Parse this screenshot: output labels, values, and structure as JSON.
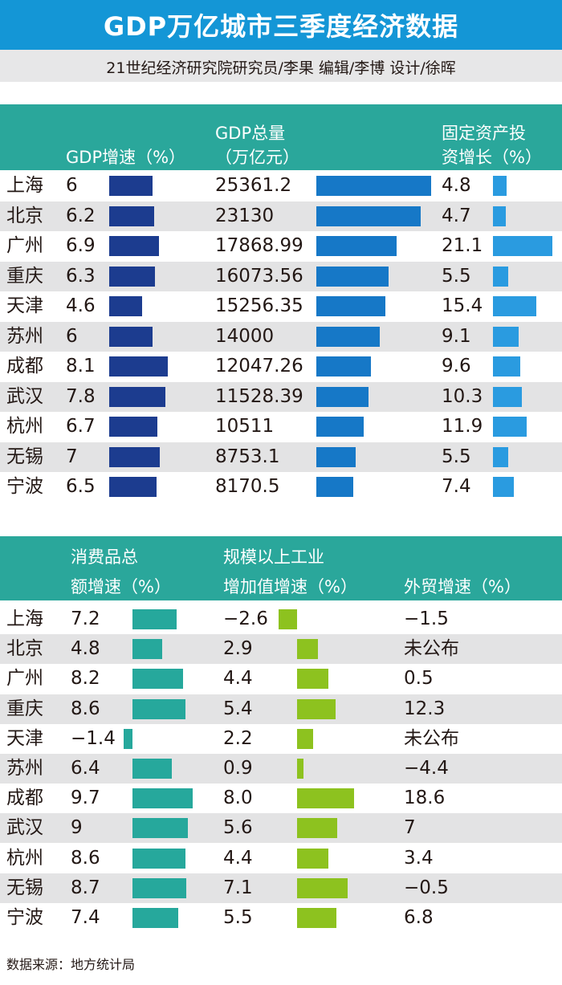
{
  "title": "GDP万亿城市三季度经济数据",
  "subtitle": "21世纪经济研究院研究员/李果 编辑/李博  设计/徐晖",
  "source": "数据来源：地方统计局",
  "colors": {
    "title_bg": "#1496d6",
    "header_bg": "#2aa79b",
    "gdp_growth_bar": "#1c3c8f",
    "gdp_total_bar": "#1678c7",
    "fixed_asset_bar": "#2a9be0",
    "consumer_bar": "#26a89c",
    "industrial_bar": "#8dc21f"
  },
  "chart_data": [
    {
      "type": "bar",
      "cities": [
        "上海",
        "北京",
        "广州",
        "重庆",
        "天津",
        "苏州",
        "成都",
        "武汉",
        "杭州",
        "无锡",
        "宁波"
      ],
      "series": [
        {
          "name": "GDP增速（%）",
          "header_lines": [
            "",
            "GDP增速（%）"
          ],
          "values": [
            6,
            6.2,
            6.9,
            6.3,
            4.6,
            6,
            8.1,
            7.8,
            6.7,
            7,
            6.5
          ],
          "labels": [
            "6",
            "6.2",
            "6.9",
            "6.3",
            "4.6",
            "6",
            "8.1",
            "7.8",
            "6.7",
            "7",
            "6.5"
          ]
        },
        {
          "name": "GDP总量（万亿元）",
          "header_lines": [
            "GDP总量",
            "（万亿元）"
          ],
          "values": [
            25361.2,
            23130,
            17868.99,
            16073.56,
            15256.35,
            14000,
            12047.26,
            11528.39,
            10511,
            8753.1,
            8170.5
          ],
          "labels": [
            "25361.2",
            "23130",
            "17868.99",
            "16073.56",
            "15256.35",
            "14000",
            "12047.26",
            "11528.39",
            "10511",
            "8753.1",
            "8170.5"
          ]
        },
        {
          "name": "固定资产投资增长（%）",
          "header_lines": [
            "固定资产投",
            "资增长（%）"
          ],
          "values": [
            4.8,
            4.7,
            21.1,
            5.5,
            15.4,
            9.1,
            9.6,
            10.3,
            11.9,
            5.5,
            7.4
          ],
          "labels": [
            "4.8",
            "4.7",
            "21.1",
            "5.5",
            "15.4",
            "9.1",
            "9.6",
            "10.3",
            "11.9",
            "5.5",
            "7.4"
          ]
        }
      ]
    },
    {
      "type": "bar",
      "cities": [
        "上海",
        "北京",
        "广州",
        "重庆",
        "天津",
        "苏州",
        "成都",
        "武汉",
        "杭州",
        "无锡",
        "宁波"
      ],
      "series": [
        {
          "name": "消费品总额增速（%）",
          "header_lines": [
            "消费品总",
            "额增速（%）"
          ],
          "values": [
            7.2,
            4.8,
            8.2,
            8.6,
            -1.4,
            6.4,
            9.7,
            9,
            8.6,
            8.7,
            7.4
          ],
          "labels": [
            "7.2",
            "4.8",
            "8.2",
            "8.6",
            "−1.4",
            "6.4",
            "9.7",
            "9",
            "8.6",
            "8.7",
            "7.4"
          ]
        },
        {
          "name": "规模以上工业增加值增速（%）",
          "header_lines": [
            "规模以上工业",
            "增加值增速（%）"
          ],
          "values": [
            -2.6,
            2.9,
            4.4,
            5.4,
            2.2,
            0.9,
            8.0,
            5.6,
            4.4,
            7.1,
            5.5
          ],
          "labels": [
            "−2.6",
            "2.9",
            "4.4",
            "5.4",
            "2.2",
            "0.9",
            "8.0",
            "5.6",
            "4.4",
            "7.1",
            "5.5"
          ]
        },
        {
          "name": "外贸增速（%）",
          "header_lines": [
            "",
            "外贸增速（%）"
          ],
          "values": [
            -1.5,
            null,
            0.5,
            12.3,
            null,
            -4.4,
            18.6,
            7,
            3.4,
            -0.5,
            6.8
          ],
          "labels": [
            "−1.5",
            "未公布",
            "0.5",
            "12.3",
            "未公布",
            "−4.4",
            "18.6",
            "7",
            "3.4",
            "−0.5",
            "6.8"
          ]
        }
      ]
    }
  ]
}
